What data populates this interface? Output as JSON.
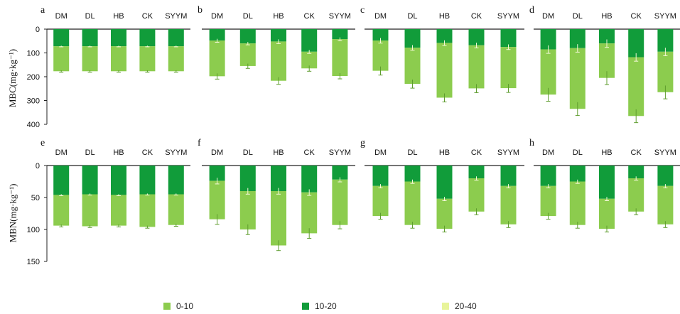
{
  "colors": {
    "layer_0_10": "#8ccc4e",
    "layer_10_20": "#119c3a",
    "layer_20_40": "#e8f49a",
    "axis": "#222222",
    "errbar": "#f4f8d8"
  },
  "legend": [
    {
      "label": "0-10",
      "color_key": "layer_0_10"
    },
    {
      "label": "10-20",
      "color_key": "layer_10_20"
    },
    {
      "label": "20-40",
      "color_key": "layer_20_40"
    }
  ],
  "row_labels": {
    "top": "MBC(mg·kg⁻¹)",
    "bottom": "MBN(mg·kg⁻¹)"
  },
  "chart_data": [
    {
      "panel": "a",
      "type": "bar",
      "stacked": "downward",
      "categories": [
        "DM",
        "DL",
        "HB",
        "CK",
        "SYYM"
      ],
      "y_ticks": [
        0,
        100,
        200,
        300,
        400
      ],
      "ylim": [
        0,
        400
      ],
      "series": [
        {
          "name": "10-20",
          "values": [
            72,
            72,
            72,
            72,
            72
          ]
        },
        {
          "name": "0-10",
          "values": [
            105,
            105,
            105,
            105,
            105
          ]
        }
      ],
      "error_totals": [
        4,
        4,
        4,
        4,
        4
      ]
    },
    {
      "panel": "b",
      "type": "bar",
      "stacked": "downward",
      "categories": [
        "DM",
        "DL",
        "HB",
        "CK",
        "SYYM"
      ],
      "ylim": [
        0,
        400
      ],
      "series": [
        {
          "name": "10-20",
          "values": [
            48,
            60,
            52,
            95,
            42
          ]
        },
        {
          "name": "0-10",
          "values": [
            150,
            95,
            165,
            70,
            155
          ]
        }
      ],
      "error_totals": [
        12,
        10,
        15,
        12,
        12
      ]
    },
    {
      "panel": "c",
      "type": "bar",
      "stacked": "downward",
      "categories": [
        "DM",
        "DL",
        "HB",
        "CK",
        "SYYM"
      ],
      "ylim": [
        0,
        400
      ],
      "series": [
        {
          "name": "10-20",
          "values": [
            48,
            78,
            58,
            68,
            75
          ]
        },
        {
          "name": "0-10",
          "values": [
            127,
            152,
            230,
            181,
            173
          ]
        }
      ],
      "error_totals": [
        18,
        18,
        18,
        18,
        18
      ]
    },
    {
      "panel": "d",
      "type": "bar",
      "stacked": "downward",
      "categories": [
        "DM",
        "DL",
        "HB",
        "CK",
        "SYYM"
      ],
      "ylim": [
        0,
        400
      ],
      "series": [
        {
          "name": "10-20",
          "values": [
            85,
            80,
            60,
            118,
            95
          ]
        },
        {
          "name": "0-10",
          "values": [
            190,
            255,
            145,
            247,
            170
          ]
        }
      ],
      "error_totals": [
        28,
        28,
        28,
        28,
        28
      ]
    },
    {
      "panel": "e",
      "type": "bar",
      "stacked": "downward",
      "categories": [
        "DM",
        "DL",
        "HB",
        "CK",
        "SYYM"
      ],
      "y_ticks": [
        0,
        50,
        100,
        150
      ],
      "ylim": [
        0,
        150
      ],
      "series": [
        {
          "name": "10-20",
          "values": [
            46,
            45,
            46,
            45,
            45
          ]
        },
        {
          "name": "0-10",
          "values": [
            48,
            50,
            48,
            51,
            48
          ]
        }
      ],
      "error_totals": [
        2,
        2,
        2,
        2,
        2
      ]
    },
    {
      "panel": "f",
      "type": "bar",
      "stacked": "downward",
      "categories": [
        "DM",
        "DL",
        "HB",
        "CK",
        "SYYM"
      ],
      "ylim": [
        0,
        150
      ],
      "series": [
        {
          "name": "10-20",
          "values": [
            24,
            40,
            40,
            42,
            22
          ]
        },
        {
          "name": "0-10",
          "values": [
            60,
            60,
            85,
            64,
            71
          ]
        }
      ],
      "error_totals": [
        8,
        8,
        8,
        8,
        6
      ]
    },
    {
      "panel": "g",
      "type": "bar",
      "stacked": "downward",
      "categories": [
        "DM",
        "DL",
        "HB",
        "CK",
        "SYYM"
      ],
      "ylim": [
        0,
        150
      ],
      "series": [
        {
          "name": "10-20",
          "values": [
            32,
            25,
            52,
            20,
            32
          ]
        },
        {
          "name": "0-10",
          "values": [
            47,
            68,
            47,
            52,
            60
          ]
        }
      ],
      "error_totals": [
        5,
        5,
        5,
        5,
        5
      ]
    },
    {
      "panel": "h",
      "type": "bar",
      "stacked": "downward",
      "categories": [
        "DM",
        "DL",
        "HB",
        "CK",
        "SYYM"
      ],
      "ylim": [
        0,
        150
      ],
      "series": [
        {
          "name": "10-20",
          "values": [
            32,
            25,
            52,
            20,
            32
          ]
        },
        {
          "name": "0-10",
          "values": [
            47,
            68,
            47,
            52,
            60
          ]
        }
      ],
      "error_totals": [
        5,
        5,
        5,
        5,
        5
      ]
    }
  ]
}
